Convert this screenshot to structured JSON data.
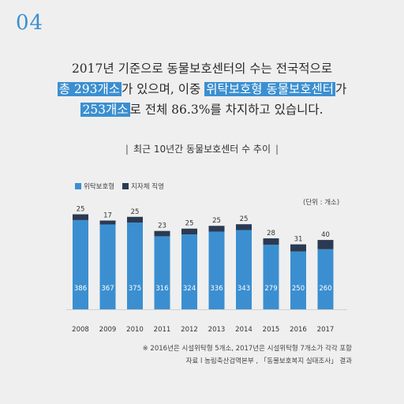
{
  "page_number": "04",
  "headline": {
    "line1": "2017년 기준으로 동물보호센터의 수는 전국적으로",
    "line2_hl1": "총 293개소",
    "line2_mid": "가 있으며, 이중 ",
    "line2_hl2": "위탁보호형 동물보호센터",
    "line2_end": "가",
    "line3_hl": "253개소",
    "line3_rest": "로 전체 86.3%를 차지하고 있습니다."
  },
  "chart_title": "최근 10년간 동물보호센터 수 추이",
  "chart_title_bar": "|",
  "unit_label": "(단위 : 개소)",
  "colors": {
    "outsourced": "#3b8fd0",
    "municipal": "#2b3a52",
    "accent": "#3b8fd0"
  },
  "chart_data": {
    "type": "bar",
    "stacked": true,
    "categories": [
      "2008",
      "2009",
      "2010",
      "2011",
      "2012",
      "2013",
      "2014",
      "2015",
      "2016",
      "2017"
    ],
    "series": [
      {
        "name": "위탁보호형",
        "values": [
          386,
          367,
          375,
          316,
          324,
          336,
          343,
          279,
          250,
          260
        ]
      },
      {
        "name": "지자체 직영",
        "values": [
          25,
          17,
          25,
          23,
          25,
          25,
          25,
          28,
          31,
          40
        ]
      }
    ],
    "legend_position": "top-left"
  },
  "footnote": {
    "line1": "※ 2016년은 시설위탁형 5개소, 2017년은 시설위탁형 7개소가 각각 포함",
    "line2": "자료 l 농림축산검역본부 , 「동물보호복지 실태조사」 결과"
  }
}
